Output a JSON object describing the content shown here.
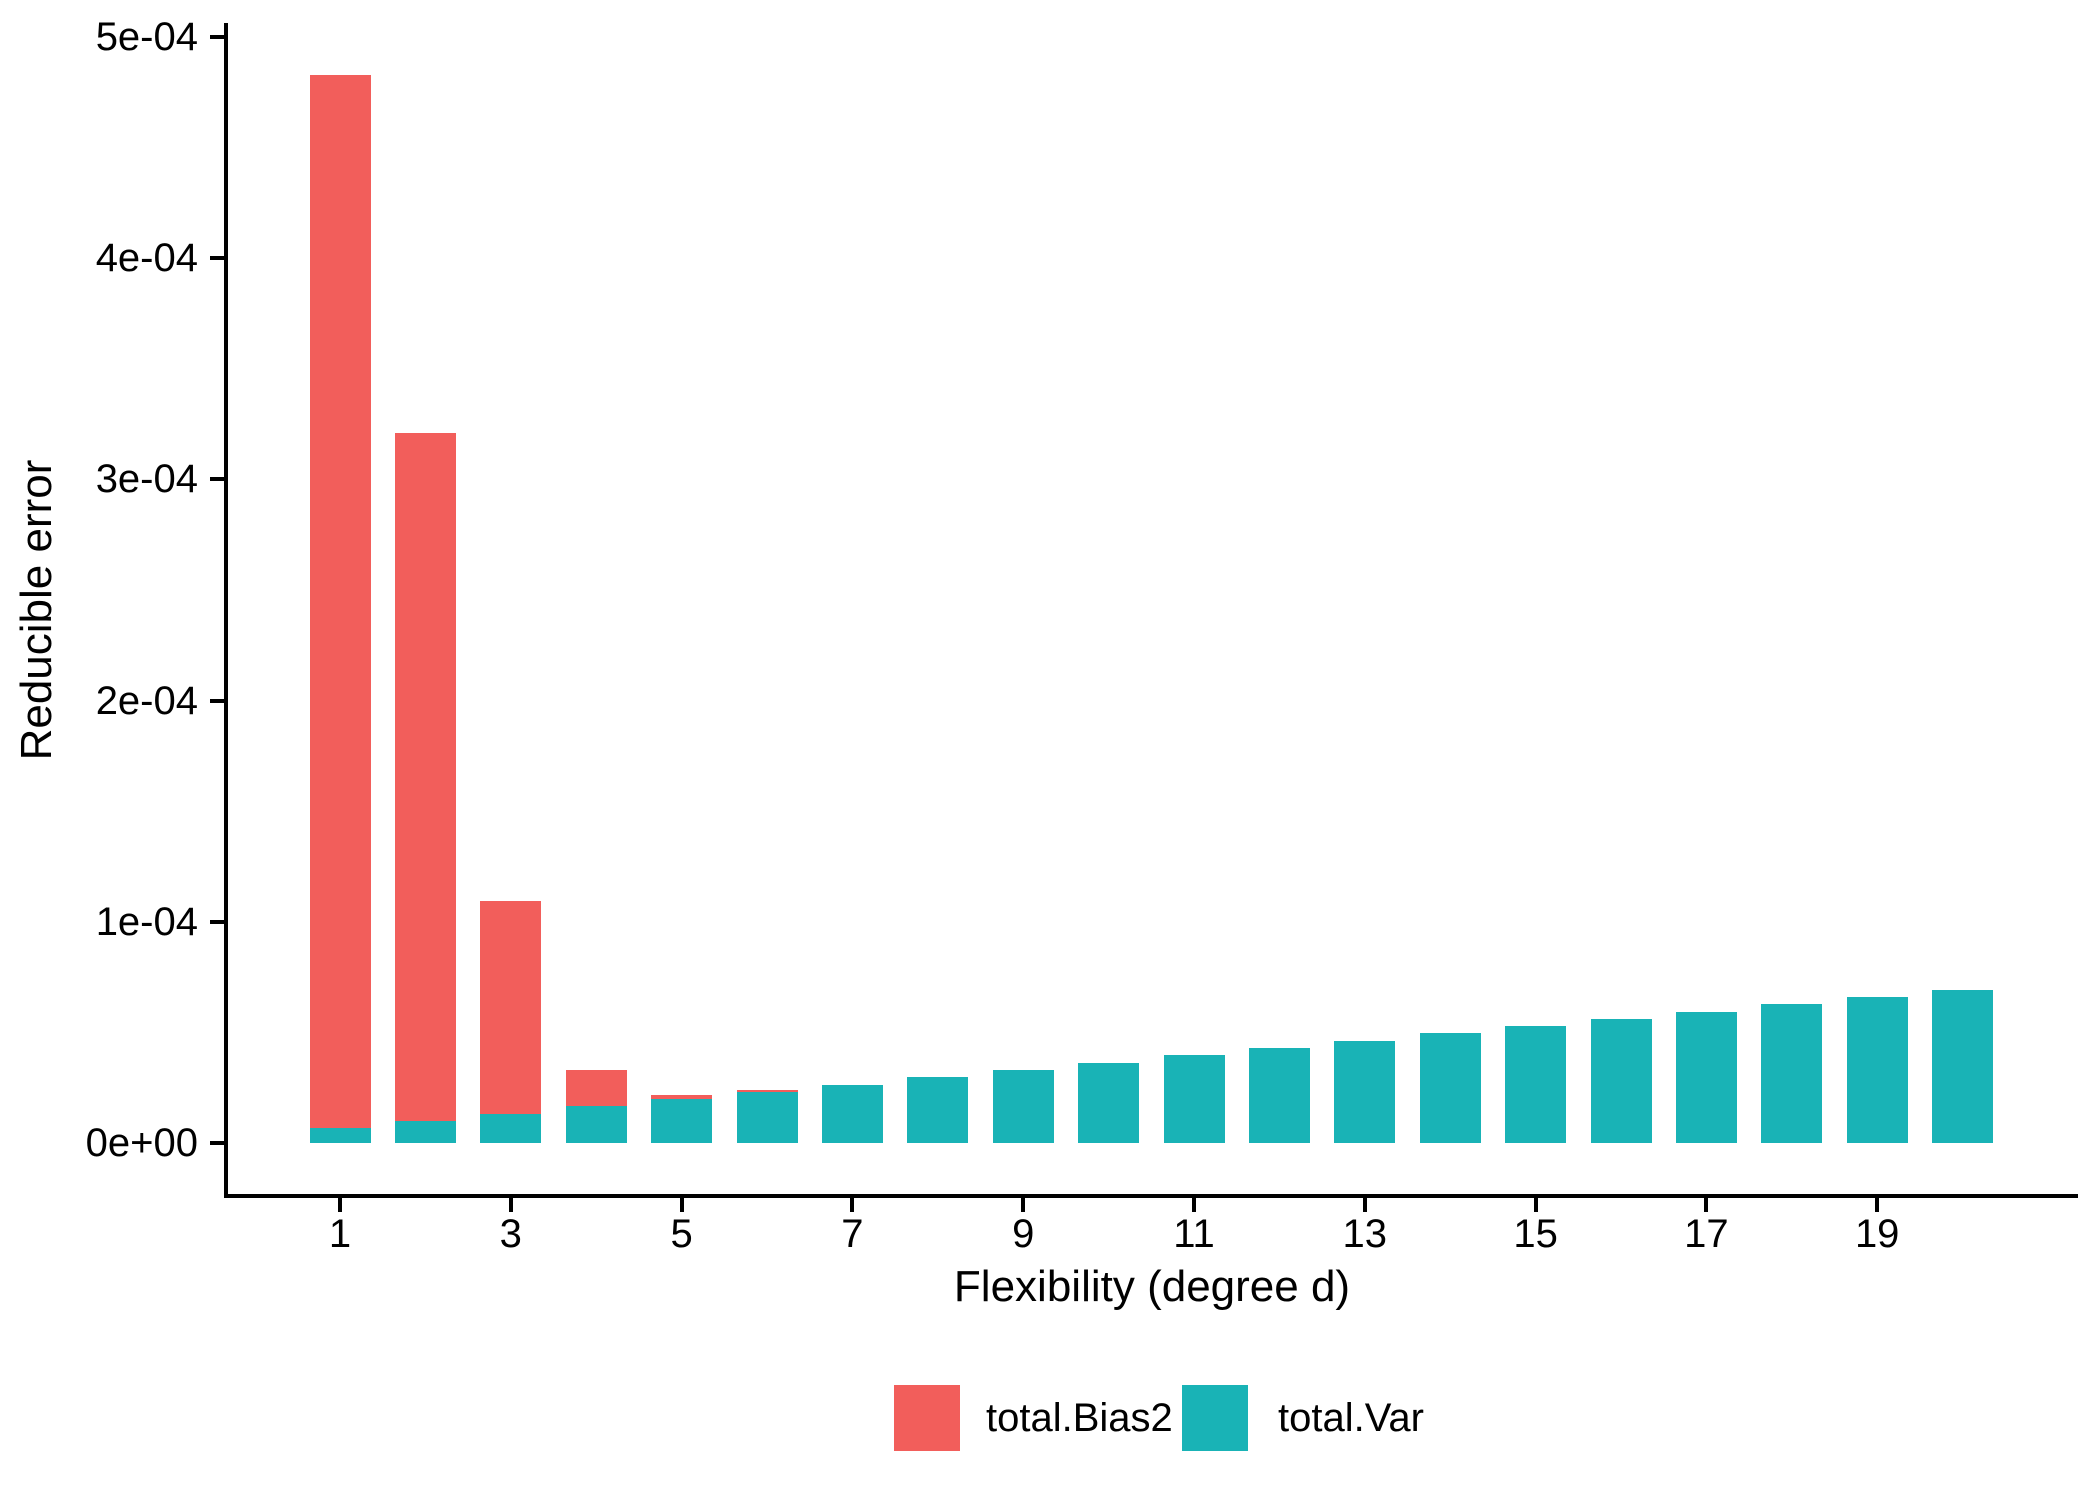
{
  "chart_data": {
    "type": "bar",
    "stacked": true,
    "title": "",
    "xlabel": "Flexibility (degree d)",
    "ylabel": "Reducible error",
    "categories": [
      1,
      2,
      3,
      4,
      5,
      6,
      7,
      8,
      9,
      10,
      11,
      12,
      13,
      14,
      15,
      16,
      17,
      18,
      19,
      20
    ],
    "x_tick_labels": [
      "1",
      "3",
      "5",
      "7",
      "9",
      "11",
      "13",
      "15",
      "17",
      "19"
    ],
    "x_ticks_at": [
      1,
      3,
      5,
      7,
      9,
      11,
      13,
      15,
      17,
      19
    ],
    "y_tick_labels": [
      "0e+00",
      "1e-04",
      "2e-04",
      "3e-04",
      "4e-04",
      "5e-04"
    ],
    "y_tick_values": [
      0,
      0.0001,
      0.0002,
      0.0003,
      0.0004,
      0.0005
    ],
    "ylim": [
      0,
      0.000507
    ],
    "grid": false,
    "legend_position": "bottom",
    "series": [
      {
        "name": "total.Bias2",
        "color": "#F25E5B",
        "values": [
          0.000476,
          0.000311,
          9.6e-05,
          1.65e-05,
          1.7e-06,
          7e-07,
          0,
          0,
          0,
          0,
          0,
          0,
          0,
          0,
          0,
          0,
          0,
          0,
          0,
          0
        ]
      },
      {
        "name": "total.Var",
        "color": "#19B3B6",
        "values": [
          6.6e-06,
          9.9e-06,
          1.32e-05,
          1.65e-05,
          1.98e-05,
          2.31e-05,
          2.64e-05,
          2.97e-05,
          3.3e-05,
          3.63e-05,
          3.96e-05,
          4.29e-05,
          4.62e-05,
          4.95e-05,
          5.28e-05,
          5.61e-05,
          5.94e-05,
          6.27e-05,
          6.6e-05,
          6.93e-05
        ]
      }
    ]
  },
  "legend": {
    "bias_label": "total.Bias2",
    "var_label": "total.Var"
  }
}
